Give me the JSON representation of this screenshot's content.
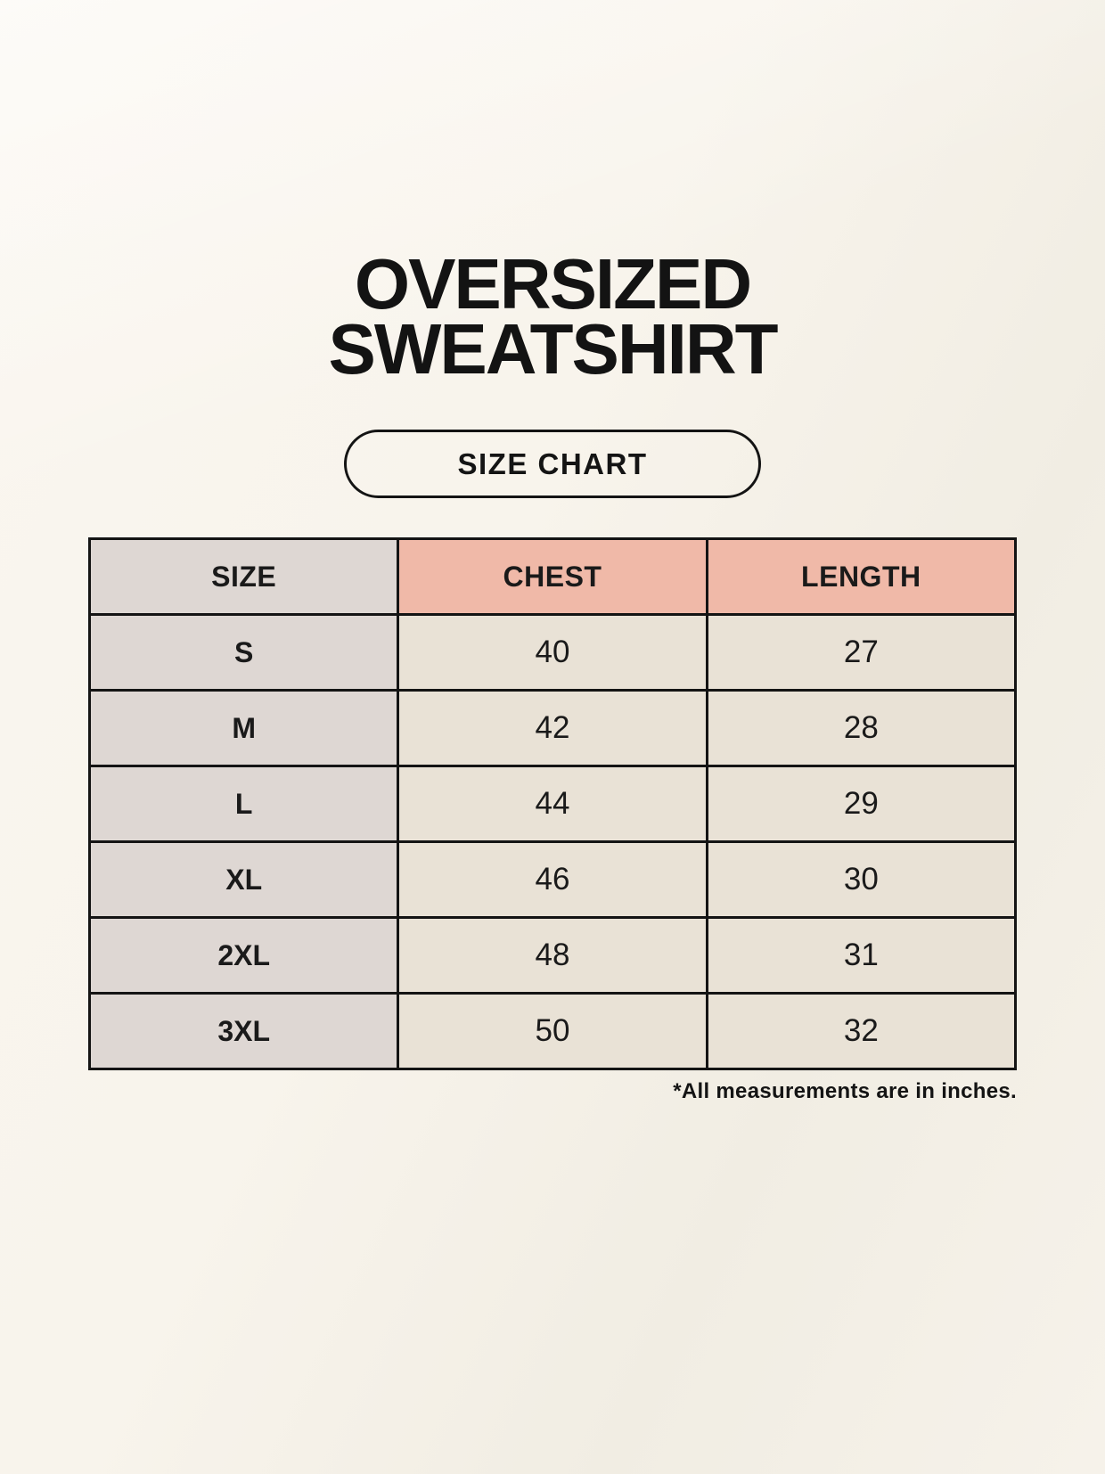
{
  "title": {
    "line1": "OVERSIZED",
    "line2": "SWEATSHIRT"
  },
  "size_chart_button": {
    "label": "SIZE CHART"
  },
  "table": {
    "columns": [
      "SIZE",
      "CHEST",
      "LENGTH"
    ],
    "rows": [
      {
        "size": "S",
        "chest": "40",
        "length": "27"
      },
      {
        "size": "M",
        "chest": "42",
        "length": "28"
      },
      {
        "size": "L",
        "chest": "44",
        "length": "29"
      },
      {
        "size": "XL",
        "chest": "46",
        "length": "30"
      },
      {
        "size": "2XL",
        "chest": "48",
        "length": "31"
      },
      {
        "size": "3XL",
        "chest": "50",
        "length": "32"
      }
    ],
    "footnote": "*All measurements are in inches.",
    "units": "inches"
  },
  "colors": {
    "background": "#f7f3eb",
    "size_column_bg": "#ded7d3",
    "measure_header_bg": "#f0b9a8",
    "data_cell_bg": "#e9e2d6",
    "border": "#141414",
    "text": "#1a1a1a"
  }
}
